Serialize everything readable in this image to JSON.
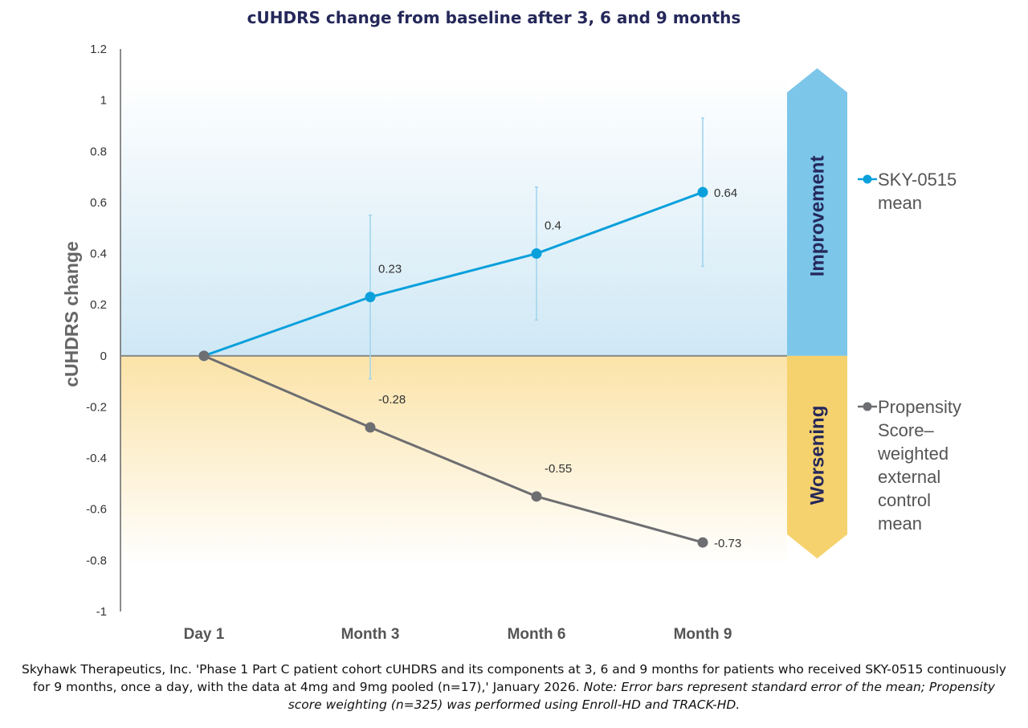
{
  "chart_data": {
    "type": "line",
    "title": "cUHDRS change from baseline after 3, 6 and 9 months",
    "xlabel": "",
    "ylabel": "cUHDRS change",
    "categories": [
      "Day 1",
      "Month 3",
      "Month 6",
      "Month 9"
    ],
    "ylim": [
      -1,
      1.2
    ],
    "yticks": [
      "1.2",
      "1",
      "0.8",
      "0.6",
      "0.4",
      "0.2",
      "0",
      "-0.2",
      "-0.4",
      "-0.6",
      "-0.8",
      "-1"
    ],
    "grid": false,
    "legend_position": "right",
    "series": [
      {
        "name": "SKY-0515 mean",
        "color": "#0aa0dc",
        "values": [
          0,
          0.23,
          0.4,
          0.64
        ],
        "labels": [
          "",
          "0.23",
          "0.4",
          "0.64"
        ],
        "error_low": [
          null,
          -0.09,
          0.14,
          0.35
        ],
        "error_high": [
          null,
          0.55,
          0.66,
          0.93
        ]
      },
      {
        "name": "Propensity Score–weighted external control mean",
        "color": "#6d6e71",
        "values": [
          0,
          -0.28,
          -0.55,
          -0.73
        ],
        "labels": [
          "",
          "-0.28",
          "-0.55",
          "-0.73"
        ]
      }
    ],
    "regions": {
      "improvement": {
        "label": "Improvement",
        "color": "#7cc6ea"
      },
      "worsening": {
        "label": "Worsening",
        "color": "#f6d26e"
      }
    }
  },
  "legend": {
    "sky_lines": [
      "SKY-0515",
      "mean"
    ],
    "control_lines": [
      "Propensity",
      "Score–",
      "weighted",
      "external",
      "control",
      "mean"
    ]
  },
  "footnote": {
    "text": "Skyhawk Therapeutics, Inc. 'Phase 1 Part C patient cohort cUHDRS and its components at 3, 6 and 9 months for patients who received SKY-0515 continuously for 9 months, once a day, with the data at 4mg and 9mg pooled (n=17),' January 2026. ",
    "note": "Note: Error bars represent standard error of the mean; Propensity score weighting (n=325) was performed using Enroll-HD and TRACK-HD."
  }
}
